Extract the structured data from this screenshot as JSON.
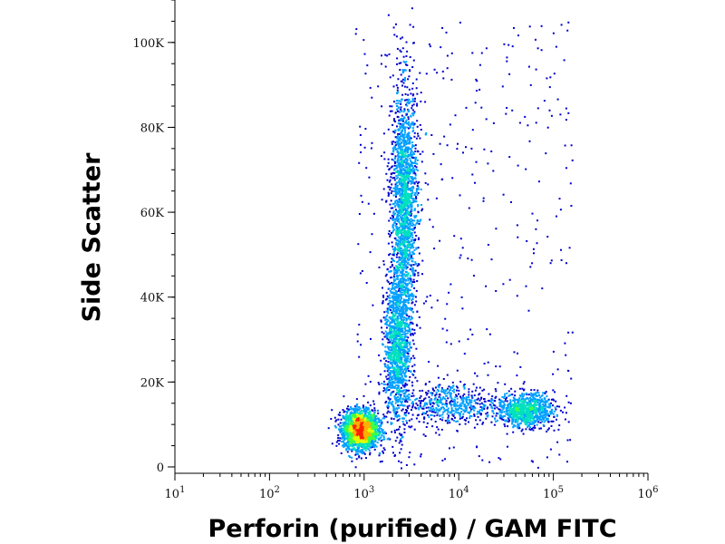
{
  "chart_data": {
    "type": "scatter",
    "subtype": "flow-cytometry-density-dot-plot",
    "title": "",
    "xlabel": "Perforin (purified) / GAM FITC",
    "ylabel": "Side Scatter",
    "x_scale": "log",
    "xlim": [
      10,
      1000000
    ],
    "ylim": [
      -1500,
      110000
    ],
    "x_ticks": [
      {
        "value": 10,
        "base": "10",
        "exp": "1"
      },
      {
        "value": 100,
        "base": "10",
        "exp": "2"
      },
      {
        "value": 1000,
        "base": "10",
        "exp": "3"
      },
      {
        "value": 10000,
        "base": "10",
        "exp": "4"
      },
      {
        "value": 100000,
        "base": "10",
        "exp": "5"
      },
      {
        "value": 1000000,
        "base": "10",
        "exp": "6"
      }
    ],
    "y_ticks": [
      {
        "value": 0,
        "label": "0"
      },
      {
        "value": 20000,
        "label": "20K"
      },
      {
        "value": 40000,
        "label": "40K"
      },
      {
        "value": 60000,
        "label": "60K"
      },
      {
        "value": 80000,
        "label": "80K"
      },
      {
        "value": 100000,
        "label": "100K"
      }
    ],
    "color_scale": [
      "#0000cc",
      "#00a0ff",
      "#00e0c0",
      "#40ff40",
      "#e0ff00",
      "#ffb000",
      "#ff2000"
    ],
    "populations": [
      {
        "x_center": 900,
        "y_center": 9000,
        "x_log_sd": 0.09,
        "y_sd": 2200,
        "density": 1.0
      },
      {
        "x_center": 2200,
        "y_center": 28000,
        "x_log_sd": 0.07,
        "y_sd": 9000,
        "density": 0.5
      },
      {
        "x_center": 2600,
        "y_center": 62000,
        "x_log_sd": 0.07,
        "y_sd": 14000,
        "density": 0.75
      },
      {
        "x_center": 50000,
        "y_center": 13500,
        "x_log_sd": 0.15,
        "y_sd": 2000,
        "density": 0.35
      },
      {
        "x_center": 8000,
        "y_center": 15000,
        "x_log_sd": 0.25,
        "y_sd": 2500,
        "density": 0.2
      }
    ],
    "grid": false,
    "legend": false
  }
}
